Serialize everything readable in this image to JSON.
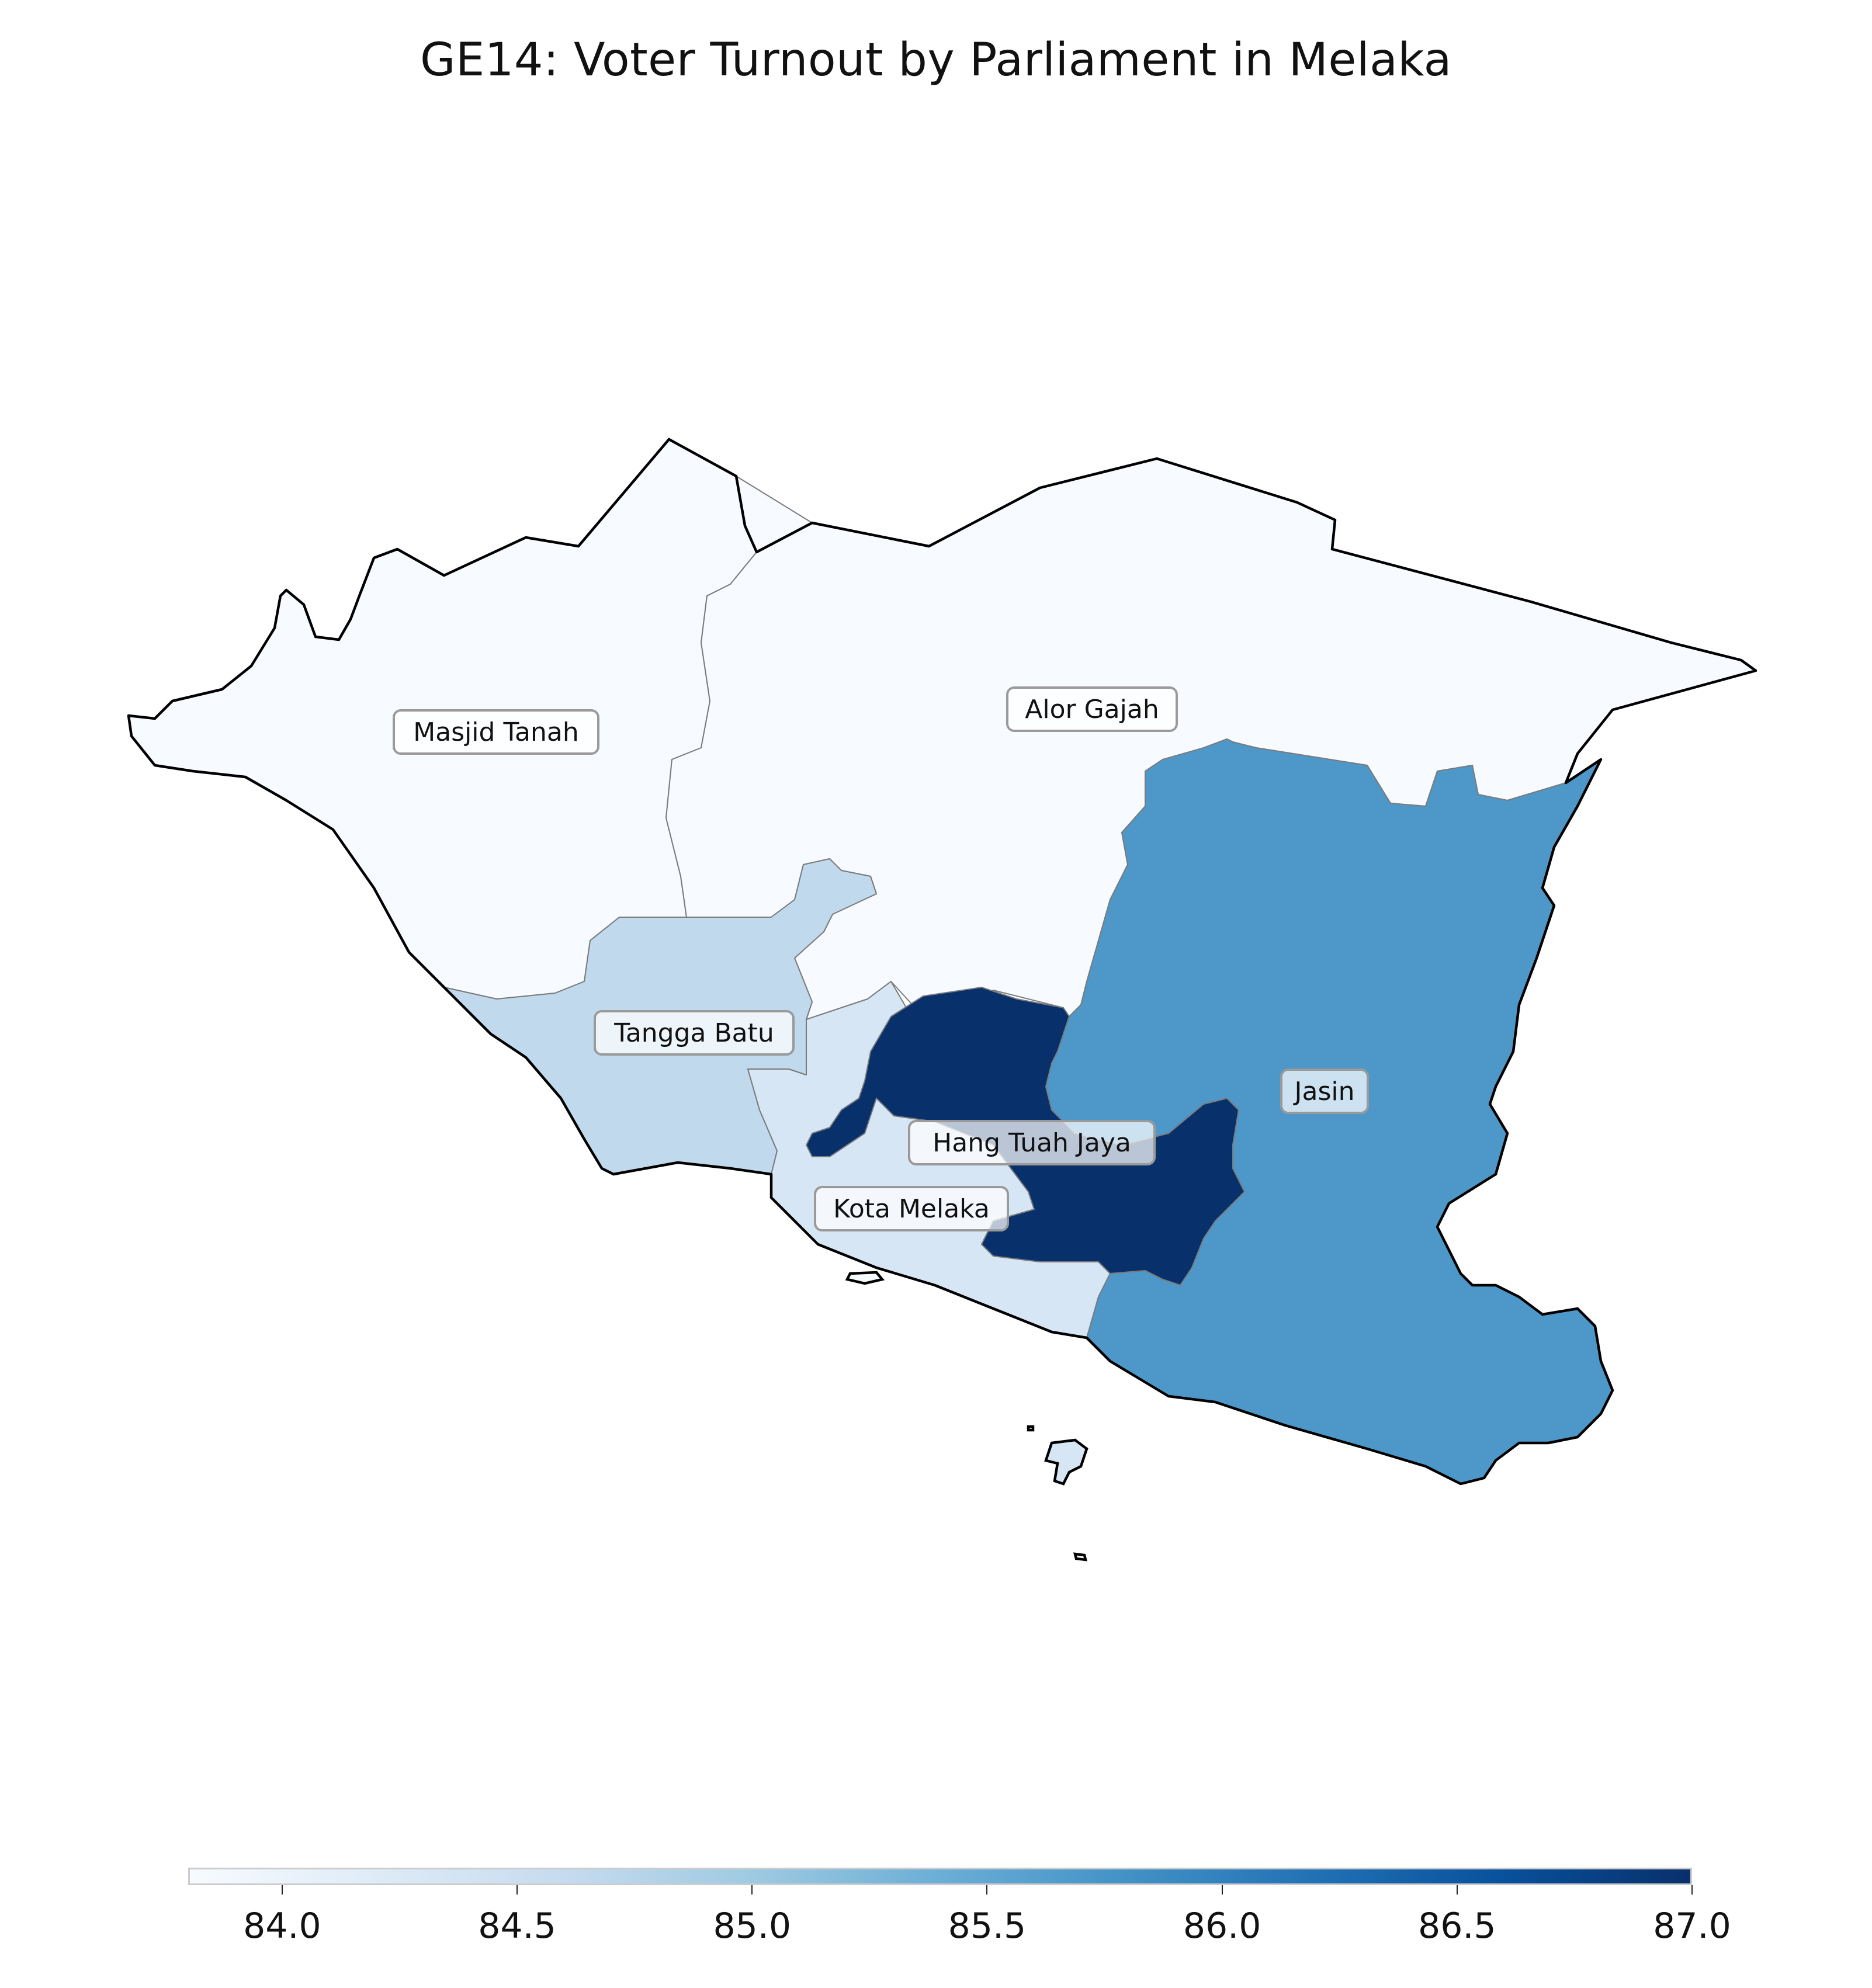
{
  "chart_data": {
    "type": "choropleth",
    "title": "GE14: Voter Turnout by Parliament in Melaka",
    "colormap": "Blues",
    "regions": [
      {
        "name": "Masjid Tanah",
        "turnout": 83.8,
        "color": "#f7fbff"
      },
      {
        "name": "Alor Gajah",
        "turnout": 83.8,
        "color": "#f7fbff"
      },
      {
        "name": "Tangga Batu",
        "turnout": 84.7,
        "color": "#c0d9ed"
      },
      {
        "name": "Kota Melaka",
        "turnout": 84.3,
        "color": "#d6e6f4"
      },
      {
        "name": "Hang Tuah Jaya",
        "turnout": 87.0,
        "color": "#08306b"
      },
      {
        "name": "Jasin",
        "turnout": 85.7,
        "color": "#4d98c9"
      }
    ],
    "colorbar": {
      "min": 83.8,
      "max": 87.0,
      "orientation": "horizontal",
      "ticks": [
        "84.0",
        "84.5",
        "85.0",
        "85.5",
        "86.0",
        "86.5",
        "87.0"
      ],
      "tick_values": [
        84.0,
        84.5,
        85.0,
        85.5,
        86.0,
        86.5,
        87.0
      ],
      "gradient": [
        "#f7fbff",
        "#deebf7",
        "#c6dbef",
        "#9ecae1",
        "#6baed6",
        "#4292c6",
        "#2171b5",
        "#08519c",
        "#08306b"
      ]
    }
  }
}
